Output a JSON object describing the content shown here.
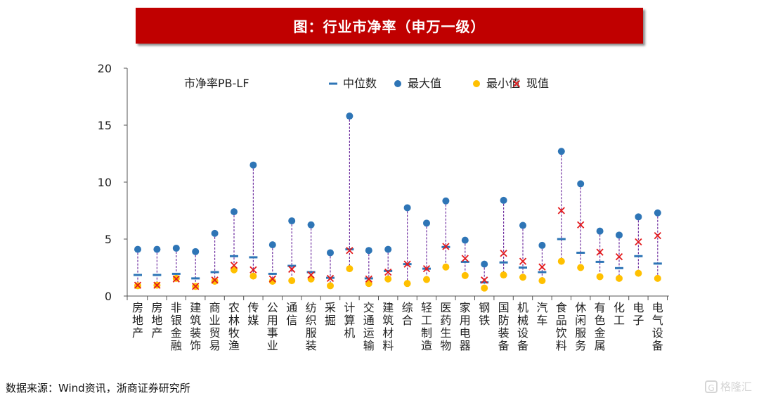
{
  "banner": {
    "title": "图：行业市净率（申万一级）"
  },
  "chart_data": {
    "type": "scatter",
    "series_label": "市净率PB-LF",
    "legend": {
      "placement": "top",
      "entries": [
        "中位数",
        "最大值",
        "最小值",
        "现值"
      ]
    },
    "colors": {
      "median": "#2e75b6",
      "max": "#2e75b6",
      "min": "#ffc000",
      "current": "#e31a1c",
      "range_line": "#7030a0"
    },
    "ylim": [
      0,
      20
    ],
    "yticks": [
      "0",
      "5",
      "10",
      "15",
      "20"
    ],
    "grid": false,
    "categories": [
      "房地产",
      "房地产",
      "非银金融",
      "建筑装饰",
      "商业贸易",
      "农林牧渔",
      "传媒",
      "公用事业",
      "通信",
      "纺织服装",
      "采掘",
      "计算机",
      "交通运输",
      "建筑材料",
      "综合",
      "轻工制造",
      "医药生物",
      "家用电器",
      "钢铁",
      "国防装备",
      "机械设备",
      "汽车",
      "食品饮料",
      "休闲服务",
      "有色金属",
      "化工",
      "电子",
      "电气设备"
    ],
    "series": [
      {
        "name": "中位数",
        "values": [
          1.85,
          1.85,
          1.95,
          1.55,
          2.1,
          3.5,
          3.4,
          1.95,
          2.65,
          2.1,
          1.6,
          4.1,
          1.55,
          2.2,
          2.8,
          2.4,
          4.3,
          3.0,
          1.2,
          2.95,
          2.5,
          2.1,
          5.0,
          3.8,
          3.0,
          2.45,
          3.5,
          2.85
        ]
      },
      {
        "name": "最大值",
        "values": [
          4.1,
          4.1,
          4.2,
          3.9,
          5.5,
          7.4,
          11.5,
          4.5,
          6.6,
          6.25,
          3.8,
          15.8,
          4.0,
          4.1,
          7.75,
          6.4,
          8.35,
          4.9,
          2.8,
          8.4,
          6.2,
          4.45,
          12.7,
          9.85,
          5.7,
          5.35,
          6.95,
          7.3
        ]
      },
      {
        "name": "最小值",
        "values": [
          0.9,
          0.95,
          1.55,
          0.85,
          1.3,
          2.3,
          1.75,
          1.3,
          1.35,
          1.5,
          0.9,
          2.4,
          1.1,
          1.5,
          1.1,
          1.45,
          2.55,
          1.8,
          0.7,
          1.85,
          1.65,
          1.35,
          3.05,
          2.5,
          1.7,
          1.55,
          2.0,
          1.55
        ]
      },
      {
        "name": "现值",
        "values": [
          0.95,
          0.95,
          1.5,
          0.85,
          1.4,
          2.7,
          2.3,
          1.5,
          2.35,
          1.85,
          1.55,
          4.0,
          1.5,
          2.1,
          2.8,
          2.4,
          4.35,
          3.3,
          1.4,
          3.75,
          3.05,
          2.55,
          7.5,
          6.25,
          3.85,
          3.45,
          4.75,
          5.3
        ]
      }
    ]
  },
  "footer": {
    "source": "数据来源：Wind资讯，浙商证券研究所",
    "watermark_logo": "G",
    "watermark_text": "格隆汇"
  }
}
